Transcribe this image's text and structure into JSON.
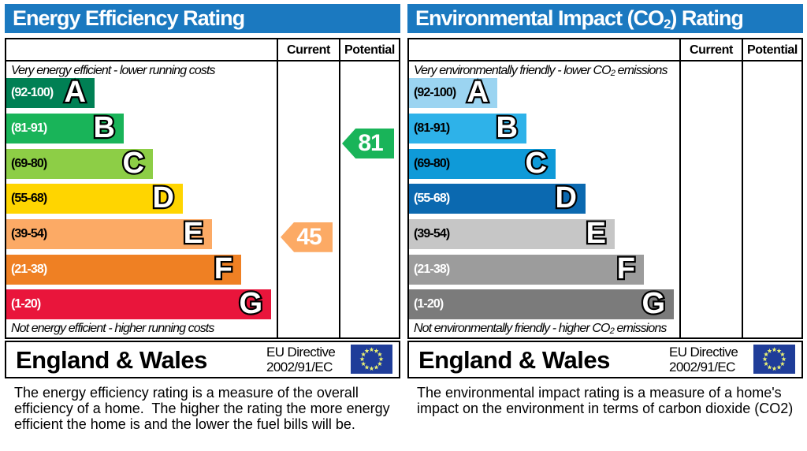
{
  "chart_data": [
    {
      "type": "bar",
      "title": "Energy Efficiency Rating",
      "categories": [
        "A",
        "B",
        "C",
        "D",
        "E",
        "F",
        "G"
      ],
      "band_ranges": [
        "92-100",
        "81-91",
        "69-80",
        "55-68",
        "39-54",
        "21-38",
        "1-20"
      ],
      "band_colors": [
        "#008054",
        "#19b459",
        "#8dce46",
        "#ffd500",
        "#fcaa65",
        "#ef8023",
        "#e9153b"
      ],
      "columns": [
        "Current",
        "Potential"
      ],
      "current": 45,
      "current_band": "E",
      "potential": 81,
      "potential_band": "B",
      "top_note": "Very energy efficient - lower running costs",
      "bottom_note": "Not energy efficient - higher running costs"
    },
    {
      "type": "bar",
      "title": "Environmental Impact (CO2) Rating",
      "categories": [
        "A",
        "B",
        "C",
        "D",
        "E",
        "F",
        "G"
      ],
      "band_ranges": [
        "92-100",
        "81-91",
        "69-80",
        "55-68",
        "39-54",
        "21-38",
        "1-20"
      ],
      "band_colors": [
        "#9bd4f1",
        "#2eb2e9",
        "#0f9ad8",
        "#0b69b0",
        "#c6c6c6",
        "#9c9c9c",
        "#7b7b7b"
      ],
      "columns": [
        "Current",
        "Potential"
      ],
      "current": null,
      "current_band": null,
      "potential": null,
      "potential_band": null,
      "top_note": "Very environmentally friendly - lower CO2 emissions",
      "bottom_note": "Not environmentally friendly - higher CO2 emissions"
    }
  ],
  "colors": {
    "header_bg": "#1b79c0",
    "header_text": "#ffffff",
    "border": "#000000",
    "eu_flag_bg": "#1f3d99",
    "eu_star": "#e8ef74"
  },
  "left_panel": {
    "title": {
      "pre": "Energy Efficiency Rating",
      "sub": "",
      "post": ""
    },
    "col_current": "Current",
    "col_potential": "Potential",
    "caption_top": {
      "pre": "Very energy efficient - lower running costs",
      "sub": "",
      "post": ""
    },
    "caption_bottom": {
      "pre": "Not energy efficient - higher running costs",
      "sub": "",
      "post": ""
    },
    "bands": [
      {
        "range": "(92-100)",
        "letter": "A",
        "min": 92,
        "max": 100,
        "color": "#008054",
        "range_color": "#ffffff"
      },
      {
        "range": "(81-91)",
        "letter": "B",
        "min": 81,
        "max": 91,
        "color": "#19b459",
        "range_color": "#ffffff"
      },
      {
        "range": "(69-80)",
        "letter": "C",
        "min": 69,
        "max": 80,
        "color": "#8dce46",
        "range_color": "#000000"
      },
      {
        "range": "(55-68)",
        "letter": "D",
        "min": 55,
        "max": 68,
        "color": "#ffd500",
        "range_color": "#000000"
      },
      {
        "range": "(39-54)",
        "letter": "E",
        "min": 39,
        "max": 54,
        "color": "#fcaa65",
        "range_color": "#000000"
      },
      {
        "range": "(21-38)",
        "letter": "F",
        "min": 21,
        "max": 38,
        "color": "#ef8023",
        "range_color": "#ffffff"
      },
      {
        "range": "(1-20)",
        "letter": "G",
        "min": 1,
        "max": 20,
        "color": "#e9153b",
        "range_color": "#ffffff"
      }
    ],
    "arrows": [
      {
        "column": "current",
        "value": 45,
        "band_index": 4,
        "color": "#fcaa65"
      },
      {
        "column": "potential",
        "value": 81,
        "band_index": 1,
        "color": "#19b459"
      }
    ],
    "footer": {
      "region": "England & Wales",
      "directive_line1": "EU Directive",
      "directive_line2": "2002/91/EC"
    },
    "description_lines": [
      "The energy efficiency rating is a measure of the overall",
      "efficiency of a home.  The higher the rating the more energy",
      "efficient the home is and the lower the fuel bills will be."
    ]
  },
  "right_panel": {
    "title": {
      "pre": "Environmental Impact (CO",
      "sub": "2",
      "post": ") Rating"
    },
    "col_current": "Current",
    "col_potential": "Potential",
    "caption_top": {
      "pre": "Very environmentally friendly - lower CO",
      "sub": "2",
      "post": " emissions"
    },
    "caption_bottom": {
      "pre": "Not environmentally friendly - higher CO",
      "sub": "2",
      "post": " emissions"
    },
    "bands": [
      {
        "range": "(92-100)",
        "letter": "A",
        "min": 92,
        "max": 100,
        "color": "#9bd4f1",
        "range_color": "#000000"
      },
      {
        "range": "(81-91)",
        "letter": "B",
        "min": 81,
        "max": 91,
        "color": "#2eb2e9",
        "range_color": "#000000"
      },
      {
        "range": "(69-80)",
        "letter": "C",
        "min": 69,
        "max": 80,
        "color": "#0f9ad8",
        "range_color": "#000000"
      },
      {
        "range": "(55-68)",
        "letter": "D",
        "min": 55,
        "max": 68,
        "color": "#0b69b0",
        "range_color": "#ffffff"
      },
      {
        "range": "(39-54)",
        "letter": "E",
        "min": 39,
        "max": 54,
        "color": "#c6c6c6",
        "range_color": "#000000"
      },
      {
        "range": "(21-38)",
        "letter": "F",
        "min": 21,
        "max": 38,
        "color": "#9c9c9c",
        "range_color": "#ffffff"
      },
      {
        "range": "(1-20)",
        "letter": "G",
        "min": 1,
        "max": 20,
        "color": "#7b7b7b",
        "range_color": "#ffffff"
      }
    ],
    "arrows": [],
    "footer": {
      "region": "England & Wales",
      "directive_line1": "EU Directive",
      "directive_line2": "2002/91/EC"
    },
    "description_lines": [
      "The environmental impact rating is a measure of a home's",
      "impact on the environment in terms of carbon dioxide (CO2)"
    ]
  }
}
